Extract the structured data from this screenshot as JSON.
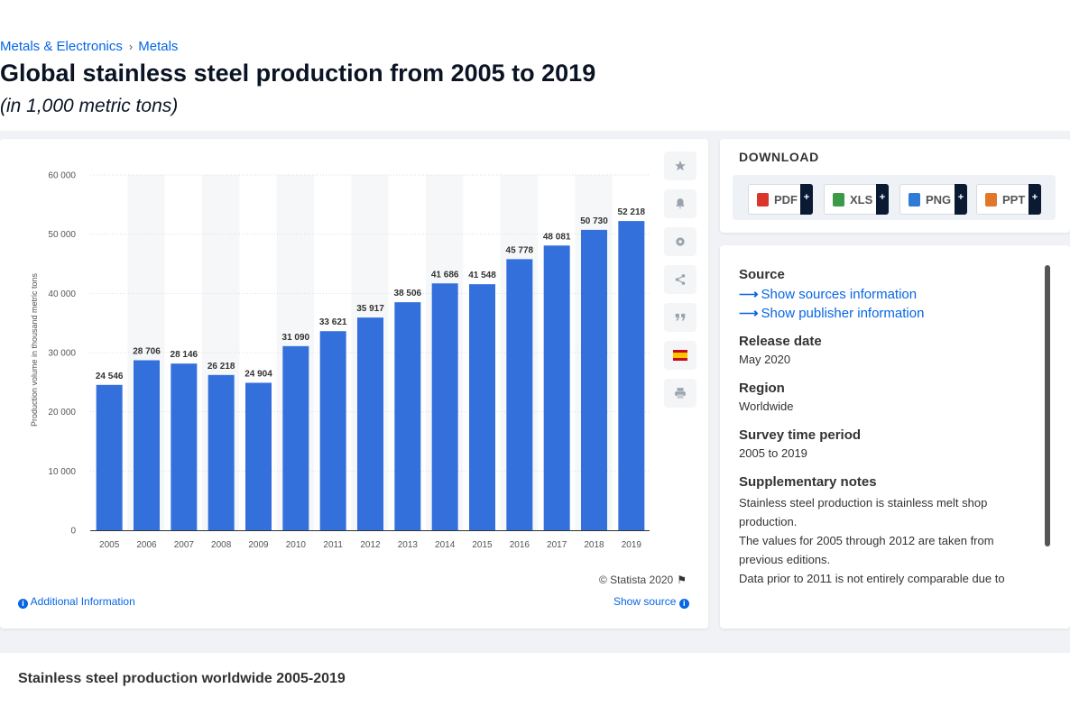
{
  "breadcrumb": {
    "items": [
      "Metals & Electronics",
      "Metals"
    ],
    "separator": "›"
  },
  "page": {
    "title": "Global stainless steel production from 2005 to 2019",
    "subtitle": "(in 1,000 metric tons)"
  },
  "chart_data": {
    "type": "bar",
    "title": "",
    "xlabel": "",
    "ylabel": "Production volume in thousand metric tons",
    "ylim": [
      0,
      60000
    ],
    "yticks": [
      0,
      10000,
      20000,
      30000,
      40000,
      50000,
      60000
    ],
    "ytick_labels": [
      "0",
      "10 000",
      "20 000",
      "30 000",
      "40 000",
      "50 000",
      "60 000"
    ],
    "grid": true,
    "bar_color": "#3370dc",
    "categories": [
      "2005",
      "2006",
      "2007",
      "2008",
      "2009",
      "2010",
      "2011",
      "2012",
      "2013",
      "2014",
      "2015",
      "2016",
      "2017",
      "2018",
      "2019"
    ],
    "values": [
      24546,
      28706,
      28146,
      26218,
      24904,
      31090,
      33621,
      35917,
      38506,
      41686,
      41548,
      45778,
      48081,
      50730,
      52218
    ],
    "value_labels": [
      "24 546",
      "28 706",
      "28 146",
      "26 218",
      "24 904",
      "31 090",
      "33 621",
      "35 917",
      "38 506",
      "41 686",
      "41 548",
      "45 778",
      "48 081",
      "50 730",
      "52 218"
    ]
  },
  "toolbar": {
    "icons": [
      "star-icon",
      "bell-icon",
      "gear-icon",
      "share-icon",
      "quote-icon",
      "flag-es-icon",
      "print-icon"
    ]
  },
  "footer": {
    "copyright": "© Statista 2020",
    "additional_info": "Additional Information",
    "show_source": "Show source"
  },
  "download": {
    "title": "DOWNLOAD",
    "formats": [
      {
        "label": "PDF",
        "color": "#d9352b"
      },
      {
        "label": "XLS",
        "color": "#3c9a46"
      },
      {
        "label": "PNG",
        "color": "#2f7bd6"
      },
      {
        "label": "PPT",
        "color": "#e0772b"
      }
    ],
    "plus": "+"
  },
  "meta": {
    "source_heading": "Source",
    "show_sources": "Show sources information",
    "show_publisher": "Show publisher information",
    "release_heading": "Release date",
    "release_value": "May 2020",
    "region_heading": "Region",
    "region_value": "Worldwide",
    "period_heading": "Survey time period",
    "period_value": "2005 to 2019",
    "notes_heading": "Supplementary notes",
    "notes": [
      "Stainless steel production is stainless melt shop production.",
      "The values for 2005 through 2012 are taken from previous editions.",
      "Data prior to 2011 is not entirely comparable due to"
    ]
  },
  "bottom": {
    "title": "Stainless steel production worldwide 2005-2019"
  }
}
